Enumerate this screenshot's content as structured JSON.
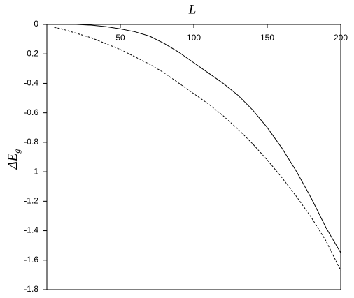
{
  "chart_data": {
    "type": "line",
    "x_label": "L",
    "y_label": "ΔE",
    "y_label_sub": "g",
    "xlim": [
      0,
      200
    ],
    "xticks": [
      50,
      100,
      150,
      200
    ],
    "ylim": [
      -1.8,
      0
    ],
    "yticks": [
      0,
      -0.2,
      -0.4,
      -0.6,
      -0.8,
      -1,
      -1.2,
      -1.4,
      -1.6,
      -1.8
    ],
    "series": [
      {
        "color": "#000000",
        "dash": false,
        "x": [
          20,
          30,
          40,
          50,
          60,
          70,
          80,
          90,
          100,
          110,
          120,
          130,
          140,
          150,
          160,
          170,
          180,
          190,
          200
        ],
        "values": [
          0,
          -0.005,
          -0.015,
          -0.03,
          -0.05,
          -0.08,
          -0.13,
          -0.19,
          -0.26,
          -0.33,
          -0.4,
          -0.48,
          -0.58,
          -0.7,
          -0.84,
          -1.0,
          -1.18,
          -1.38,
          -1.55
        ]
      },
      {
        "color": "#000000",
        "dash": true,
        "x": [
          5,
          10,
          20,
          30,
          40,
          50,
          60,
          70,
          80,
          90,
          100,
          110,
          120,
          130,
          140,
          150,
          160,
          170,
          180,
          190,
          200
        ],
        "values": [
          -0.02,
          -0.03,
          -0.06,
          -0.09,
          -0.13,
          -0.17,
          -0.22,
          -0.27,
          -0.33,
          -0.4,
          -0.47,
          -0.54,
          -0.62,
          -0.71,
          -0.81,
          -0.92,
          -1.04,
          -1.17,
          -1.31,
          -1.47,
          -1.67
        ]
      }
    ]
  }
}
